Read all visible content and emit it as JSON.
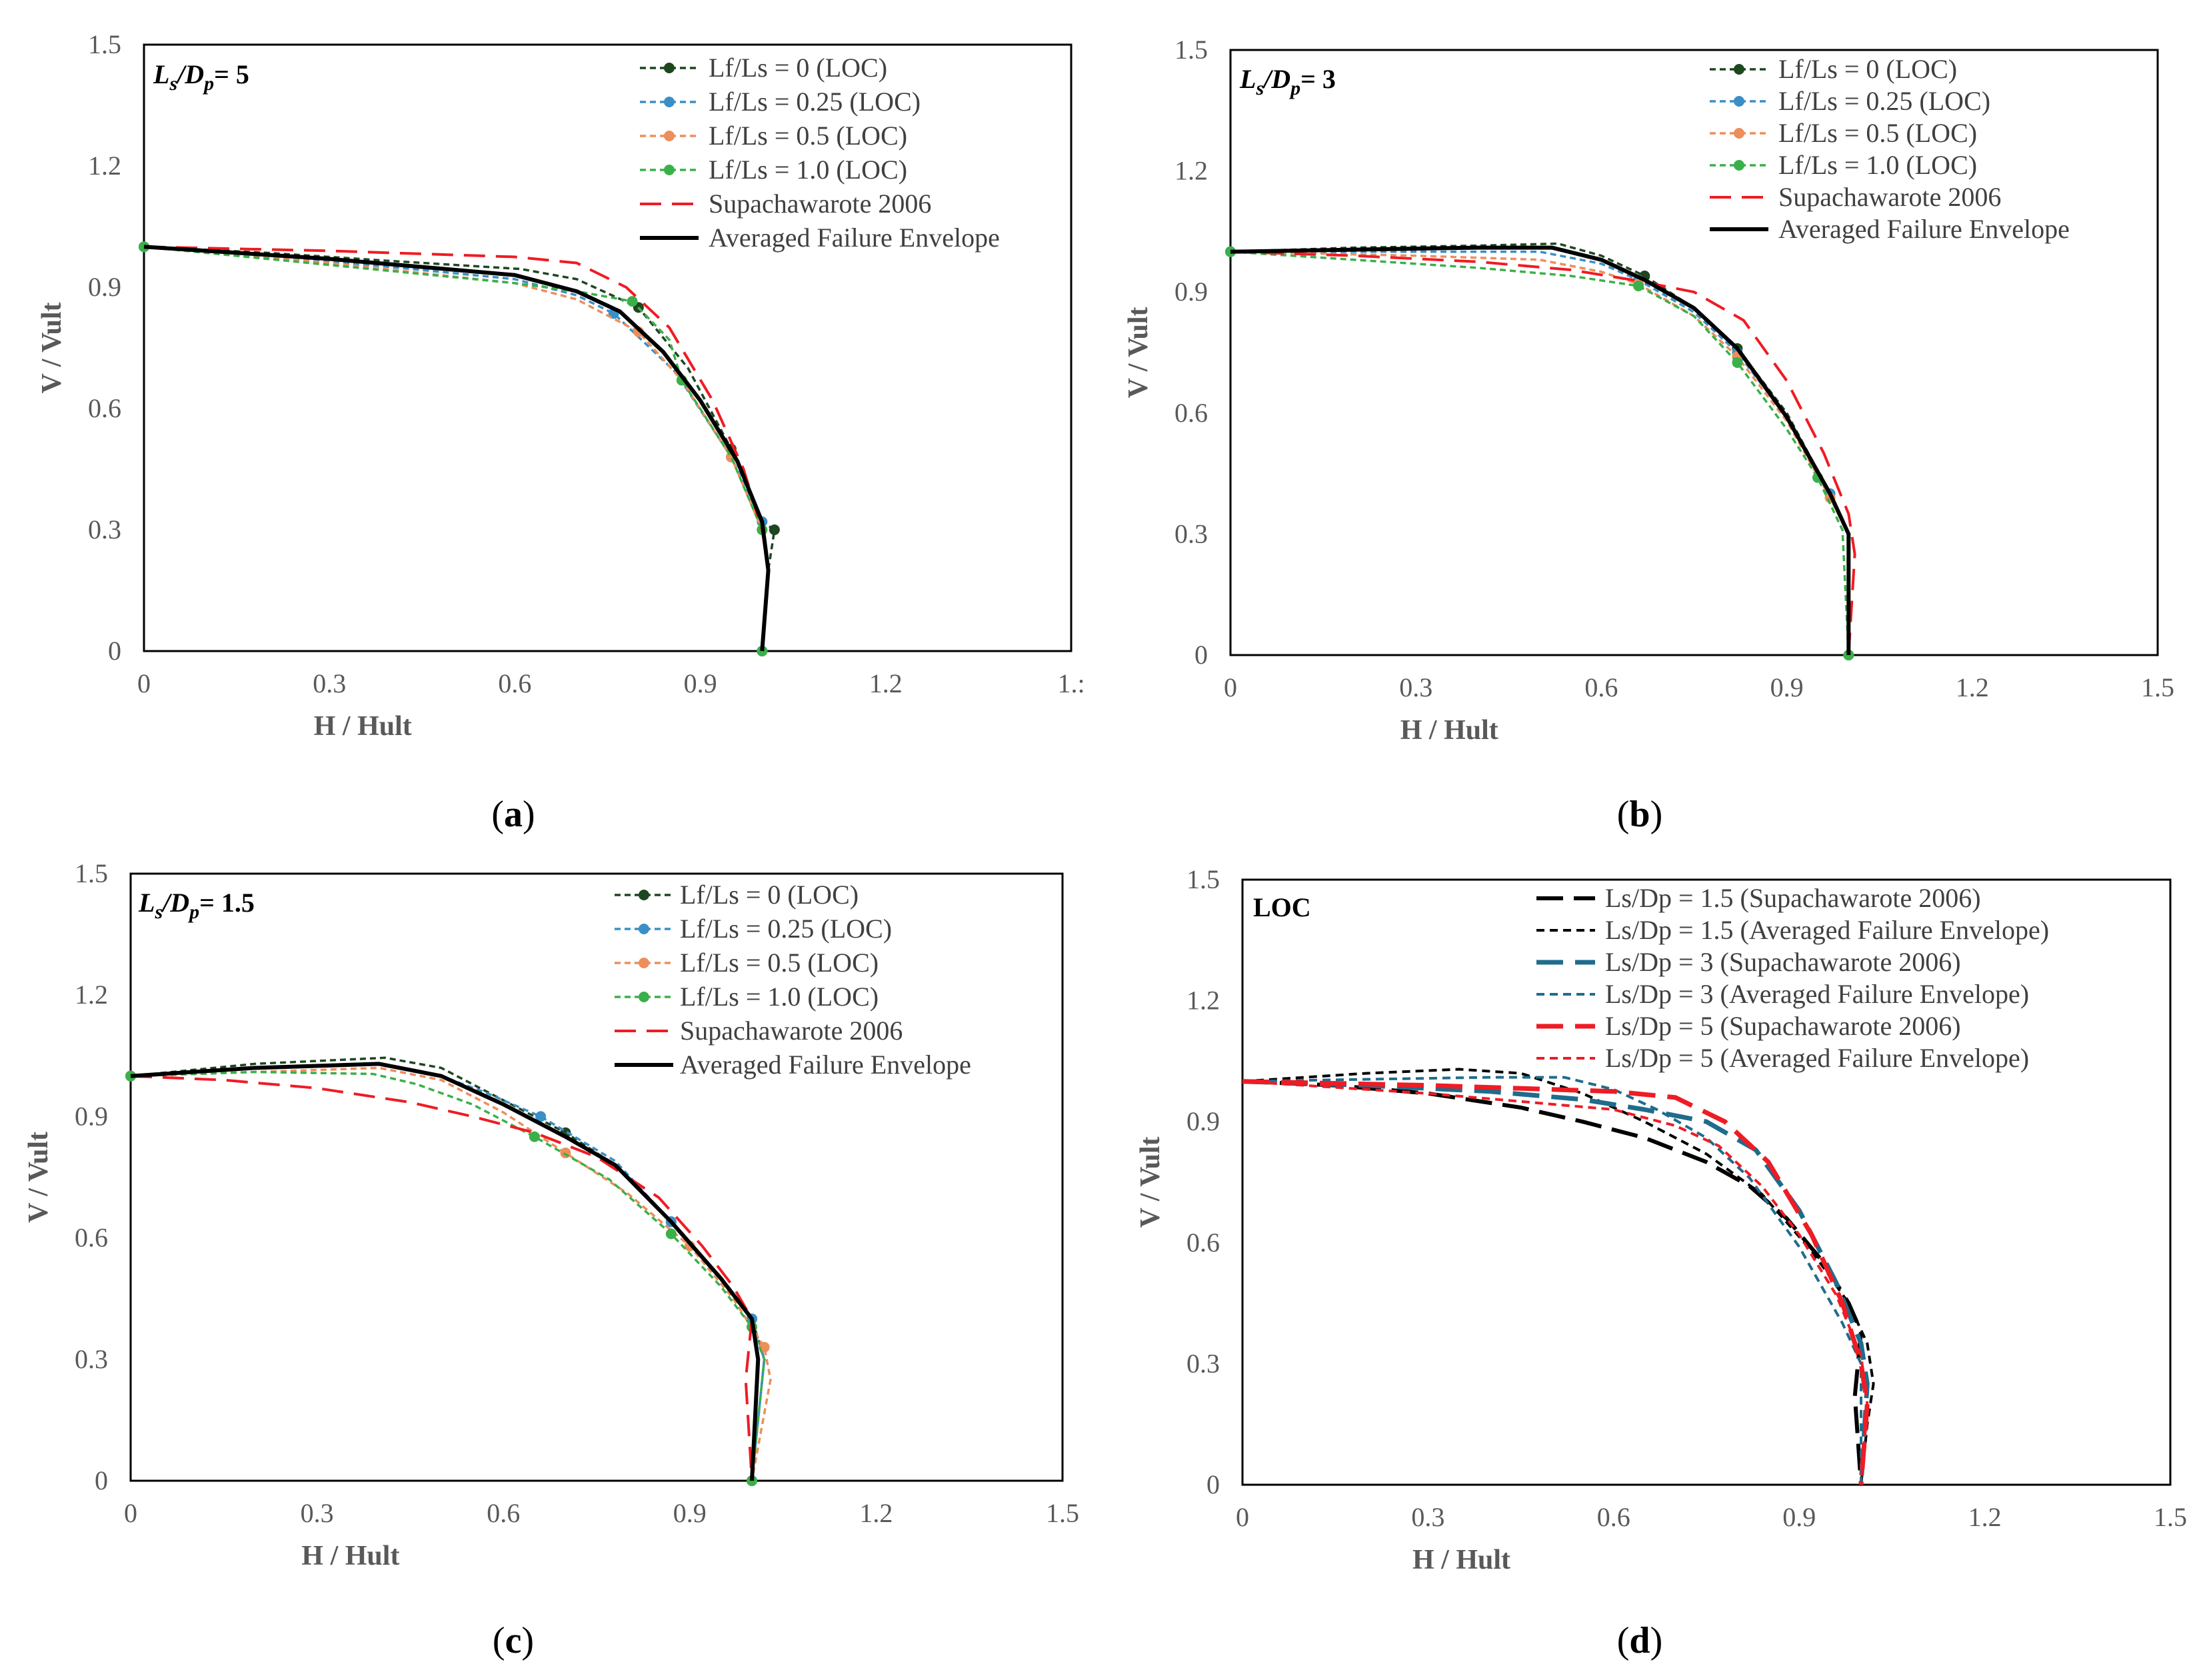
{
  "figure": {
    "panels": [
      {
        "id": "a",
        "caption": {
          "open": "(",
          "letter": "a",
          "close": ")"
        },
        "tag": {
          "main": "L",
          "sub1": "s",
          "slash": "/D",
          "sub2": "p",
          "rest": "= 5"
        },
        "xlabel": "H / Hult",
        "ylabel": "V / Vult",
        "xticks": [
          "0",
          "0.3",
          "0.6",
          "0.9",
          "1.2",
          "1.:"
        ],
        "yticks": [
          "0",
          "0.3",
          "0.6",
          "0.9",
          "1.2",
          "1.5"
        ]
      },
      {
        "id": "b",
        "caption": {
          "open": "(",
          "letter": "b",
          "close": ")"
        },
        "tag": {
          "main": "L",
          "sub1": "s",
          "slash": "/D",
          "sub2": "p",
          "rest": "= 3"
        },
        "xlabel": "H / Hult",
        "ylabel": "V / Vult",
        "xticks": [
          "0",
          "0.3",
          "0.6",
          "0.9",
          "1.2",
          "1.5"
        ],
        "yticks": [
          "0",
          "0.3",
          "0.6",
          "0.9",
          "1.2",
          "1.5"
        ]
      },
      {
        "id": "c",
        "caption": {
          "open": "(",
          "letter": "c",
          "close": ")"
        },
        "tag": {
          "main": "L",
          "sub1": "s",
          "slash": "/D",
          "sub2": "p",
          "rest": "= 1.5"
        },
        "xlabel": "H / Hult",
        "ylabel": "V / Vult",
        "xticks": [
          "0",
          "0.3",
          "0.6",
          "0.9",
          "1.2",
          "1.5"
        ],
        "yticks": [
          "0",
          "0.3",
          "0.6",
          "0.9",
          "1.2",
          "1.5"
        ]
      },
      {
        "id": "d",
        "caption": {
          "open": "(",
          "letter": "d",
          "close": ")"
        },
        "tag": {
          "plain": "LOC"
        },
        "xlabel": "H / Hult",
        "ylabel": "V / Vult",
        "xticks": [
          "0",
          "0.3",
          "0.6",
          "0.9",
          "1.2",
          "1.5"
        ],
        "yticks": [
          "0",
          "0.3",
          "0.6",
          "0.9",
          "1.2",
          "1.5"
        ]
      }
    ]
  },
  "colors": {
    "lf0": "#1e4620",
    "lf025": "#3a8fc7",
    "lf05": "#ee8e5a",
    "lf10": "#3ab04a",
    "supa": "#ee1c24",
    "avg": "#000000",
    "teal": "#1f6c8c",
    "axis": "#000000",
    "text": "#595959"
  },
  "chart_data": [
    {
      "type": "line",
      "panel": "a",
      "title": "Ls/Dp = 5",
      "xlabel": "H / Hult",
      "ylabel": "V / Vult",
      "xlim": [
        0,
        1.5
      ],
      "ylim": [
        0,
        1.5
      ],
      "series": [
        {
          "name": "Lf/Ls = 0 (LOC)",
          "style": "dotted-marker",
          "color": "lf0",
          "x": [
            0,
            0.2,
            0.4,
            0.61,
            0.7,
            0.8,
            0.88,
            0.95,
            1.0,
            1.02,
            1.01,
            1.0
          ],
          "y": [
            1.0,
            0.985,
            0.965,
            0.945,
            0.92,
            0.85,
            0.7,
            0.5,
            0.32,
            0.3,
            0.2,
            0
          ]
        },
        {
          "name": "Lf/Ls = 0.25 (LOC)",
          "style": "dotted-marker",
          "color": "lf025",
          "x": [
            0,
            0.3,
            0.6,
            0.7,
            0.76,
            0.86,
            0.95,
            1.0,
            1.01,
            1.0
          ],
          "y": [
            1.0,
            0.965,
            0.92,
            0.88,
            0.835,
            0.69,
            0.48,
            0.32,
            0.2,
            0
          ]
        },
        {
          "name": "Lf/Ls = 0.5 (LOC)",
          "style": "dotted-marker",
          "color": "lf05",
          "x": [
            0,
            0.3,
            0.6,
            0.7,
            0.8,
            0.87,
            0.95,
            1.0,
            1.01,
            1.0
          ],
          "y": [
            1.0,
            0.96,
            0.91,
            0.87,
            0.79,
            0.67,
            0.48,
            0.3,
            0.2,
            0
          ]
        },
        {
          "name": "Lf/Ls = 1.0 (LOC)",
          "style": "dotted-marker",
          "color": "lf10",
          "x": [
            0,
            0.3,
            0.6,
            0.7,
            0.79,
            0.85,
            0.87,
            0.95,
            1.0,
            1.01,
            1.0
          ],
          "y": [
            1.0,
            0.955,
            0.91,
            0.89,
            0.865,
            0.77,
            0.67,
            0.48,
            0.3,
            0.2,
            0
          ]
        },
        {
          "name": "Supachawarote 2006",
          "style": "dashed",
          "color": "supa",
          "x": [
            0,
            0.3,
            0.6,
            0.7,
            0.78,
            0.85,
            0.92,
            0.97,
            1.0,
            1.01,
            1.0
          ],
          "y": [
            1.0,
            0.99,
            0.975,
            0.96,
            0.9,
            0.8,
            0.62,
            0.45,
            0.3,
            0.2,
            0
          ]
        },
        {
          "name": "Averaged Failure Envelope",
          "style": "solid",
          "color": "avg",
          "x": [
            0,
            0.3,
            0.6,
            0.7,
            0.77,
            0.84,
            0.9,
            0.96,
            1.0,
            1.01,
            1.0
          ],
          "y": [
            1.0,
            0.97,
            0.93,
            0.89,
            0.84,
            0.74,
            0.62,
            0.47,
            0.32,
            0.2,
            0
          ]
        }
      ]
    },
    {
      "type": "line",
      "panel": "b",
      "title": "Ls/Dp = 3",
      "xlabel": "H / Hult",
      "ylabel": "V / Vult",
      "xlim": [
        0,
        1.5
      ],
      "ylim": [
        0,
        1.5
      ],
      "series": [
        {
          "name": "Lf/Ls = 0 (LOC)",
          "style": "dotted-marker",
          "color": "lf0",
          "x": [
            0,
            0.2,
            0.4,
            0.53,
            0.6,
            0.67,
            0.75,
            0.82,
            0.9,
            0.97,
            1.0,
            1.0
          ],
          "y": [
            1.0,
            1.01,
            1.015,
            1.02,
            0.99,
            0.94,
            0.86,
            0.76,
            0.6,
            0.4,
            0.3,
            0
          ]
        },
        {
          "name": "Lf/Ls = 0.25 (LOC)",
          "style": "dotted-marker",
          "color": "lf025",
          "x": [
            0,
            0.3,
            0.5,
            0.6,
            0.66,
            0.75,
            0.82,
            0.9,
            0.97,
            1.0,
            1.0
          ],
          "y": [
            1.0,
            1.0,
            1.0,
            0.97,
            0.93,
            0.85,
            0.75,
            0.59,
            0.4,
            0.3,
            0
          ]
        },
        {
          "name": "Lf/Ls = 0.5 (LOC)",
          "style": "dotted-marker",
          "color": "lf05",
          "x": [
            0,
            0.3,
            0.5,
            0.6,
            0.66,
            0.75,
            0.82,
            0.9,
            0.97,
            1.0,
            1.0
          ],
          "y": [
            1.0,
            0.99,
            0.98,
            0.95,
            0.92,
            0.84,
            0.74,
            0.58,
            0.39,
            0.3,
            0
          ]
        },
        {
          "name": "Lf/Ls = 1.0 (LOC)",
          "style": "dotted-marker",
          "color": "lf10",
          "x": [
            0,
            0.2,
            0.4,
            0.55,
            0.66,
            0.75,
            0.82,
            0.9,
            0.95,
            0.99,
            1.0
          ],
          "y": [
            1.0,
            0.98,
            0.96,
            0.94,
            0.915,
            0.84,
            0.725,
            0.56,
            0.44,
            0.31,
            0
          ]
        },
        {
          "name": "Supachawarote 2006",
          "style": "dashed",
          "color": "supa",
          "x": [
            0,
            0.2,
            0.4,
            0.55,
            0.65,
            0.75,
            0.83,
            0.9,
            0.96,
            1.0,
            1.01,
            1.0
          ],
          "y": [
            1.0,
            0.99,
            0.975,
            0.955,
            0.93,
            0.9,
            0.83,
            0.68,
            0.5,
            0.35,
            0.25,
            0
          ]
        },
        {
          "name": "Averaged Failure Envelope",
          "style": "solid",
          "color": "avg",
          "x": [
            0,
            0.2,
            0.4,
            0.52,
            0.6,
            0.67,
            0.75,
            0.82,
            0.9,
            0.97,
            1.0,
            1.0
          ],
          "y": [
            1.0,
            1.005,
            1.01,
            1.01,
            0.98,
            0.93,
            0.86,
            0.76,
            0.59,
            0.4,
            0.3,
            0
          ]
        }
      ]
    },
    {
      "type": "line",
      "panel": "c",
      "title": "Ls/Dp = 1.5",
      "xlabel": "H / Hult",
      "ylabel": "V / Vult",
      "xlim": [
        0,
        1.5
      ],
      "ylim": [
        0,
        1.5
      ],
      "series": [
        {
          "name": "Lf/Ls = 0 (LOC)",
          "style": "dotted-marker",
          "color": "lf0",
          "x": [
            0,
            0.2,
            0.41,
            0.5,
            0.6,
            0.7,
            0.78,
            0.87,
            0.95,
            1.0,
            1.02,
            1.0
          ],
          "y": [
            1.0,
            1.03,
            1.045,
            1.02,
            0.94,
            0.86,
            0.78,
            0.64,
            0.5,
            0.4,
            0.3,
            0
          ]
        },
        {
          "name": "Lf/Ls = 0.25 (LOC)",
          "style": "dotted-marker",
          "color": "lf025",
          "x": [
            0,
            0.2,
            0.4,
            0.5,
            0.57,
            0.66,
            0.78,
            0.87,
            0.95,
            1.0,
            1.02,
            1.0
          ],
          "y": [
            1.0,
            1.02,
            1.03,
            1.0,
            0.96,
            0.9,
            0.79,
            0.64,
            0.5,
            0.4,
            0.3,
            0
          ]
        },
        {
          "name": "Lf/Ls = 0.5 (LOC)",
          "style": "dotted-marker",
          "color": "lf05",
          "x": [
            0,
            0.2,
            0.4,
            0.5,
            0.6,
            0.7,
            0.8,
            0.9,
            0.97,
            1.02,
            1.03,
            1.0
          ],
          "y": [
            1.0,
            1.01,
            1.02,
            0.99,
            0.91,
            0.81,
            0.71,
            0.58,
            0.45,
            0.33,
            0.25,
            0
          ]
        },
        {
          "name": "Lf/Ls = 1.0 (LOC)",
          "style": "dotted-marker",
          "color": "lf10",
          "x": [
            0,
            0.2,
            0.39,
            0.46,
            0.55,
            0.65,
            0.77,
            0.87,
            0.95,
            1.0,
            1.02,
            1.0
          ],
          "y": [
            1.0,
            1.01,
            1.005,
            0.98,
            0.93,
            0.85,
            0.745,
            0.61,
            0.48,
            0.38,
            0.3,
            0
          ]
        },
        {
          "name": "Supachawarote 2006",
          "style": "dashed",
          "color": "supa",
          "x": [
            0,
            0.15,
            0.3,
            0.45,
            0.55,
            0.65,
            0.75,
            0.85,
            0.92,
            0.97,
            1.0,
            0.99,
            1.0
          ],
          "y": [
            1.0,
            0.99,
            0.97,
            0.935,
            0.9,
            0.86,
            0.8,
            0.7,
            0.58,
            0.48,
            0.4,
            0.25,
            0
          ]
        },
        {
          "name": "Averaged Failure Envelope",
          "style": "solid",
          "color": "avg",
          "x": [
            0,
            0.2,
            0.4,
            0.5,
            0.6,
            0.7,
            0.78,
            0.87,
            0.95,
            1.0,
            1.01,
            1.0
          ],
          "y": [
            1.0,
            1.02,
            1.03,
            1.0,
            0.93,
            0.85,
            0.78,
            0.64,
            0.5,
            0.4,
            0.3,
            0
          ]
        }
      ]
    },
    {
      "type": "line",
      "panel": "d",
      "title": "LOC",
      "xlabel": "H / Hult",
      "ylabel": "V / Vult",
      "xlim": [
        0,
        1.5
      ],
      "ylim": [
        0,
        1.5
      ],
      "series": [
        {
          "name": "Ls/Dp = 1.5 (Supachawarote 2006)",
          "style": "dashdot-long",
          "color": "avg",
          "x": [
            0,
            0.15,
            0.3,
            0.45,
            0.55,
            0.65,
            0.75,
            0.82,
            0.88,
            0.94,
            0.98,
            1.0,
            0.99,
            1.0
          ],
          "y": [
            1.0,
            0.99,
            0.97,
            0.935,
            0.9,
            0.86,
            0.8,
            0.74,
            0.66,
            0.55,
            0.45,
            0.38,
            0.22,
            0
          ]
        },
        {
          "name": "Ls/Dp = 1.5 (Averaged Failure Envelope)",
          "style": "short-dash",
          "color": "avg",
          "x": [
            0,
            0.2,
            0.35,
            0.45,
            0.55,
            0.65,
            0.75,
            0.84,
            0.92,
            0.98,
            1.01,
            1.02,
            1.01,
            1.0
          ],
          "y": [
            1.0,
            1.02,
            1.03,
            1.02,
            0.97,
            0.9,
            0.82,
            0.72,
            0.58,
            0.45,
            0.35,
            0.25,
            0.15,
            0
          ]
        },
        {
          "name": "Ls/Dp = 3 (Supachawarote 2006)",
          "style": "long-dash",
          "color": "teal",
          "x": [
            0,
            0.2,
            0.4,
            0.55,
            0.65,
            0.75,
            0.83,
            0.9,
            0.96,
            1.0,
            1.01,
            1.0
          ],
          "y": [
            1.0,
            0.99,
            0.975,
            0.955,
            0.93,
            0.9,
            0.83,
            0.68,
            0.5,
            0.35,
            0.25,
            0
          ]
        },
        {
          "name": "Ls/Dp = 3 (Averaged Failure Envelope)",
          "style": "short-dash",
          "color": "teal",
          "x": [
            0,
            0.2,
            0.4,
            0.52,
            0.6,
            0.67,
            0.75,
            0.82,
            0.9,
            0.97,
            1.0,
            1.0
          ],
          "y": [
            1.0,
            1.005,
            1.01,
            1.01,
            0.98,
            0.93,
            0.86,
            0.76,
            0.59,
            0.4,
            0.3,
            0
          ]
        },
        {
          "name": "Ls/Dp = 5 (Supachawarote 2006)",
          "style": "long-dash",
          "color": "supa",
          "x": [
            0,
            0.3,
            0.6,
            0.7,
            0.78,
            0.85,
            0.92,
            0.97,
            1.0,
            1.01,
            1.0
          ],
          "y": [
            1.0,
            0.99,
            0.975,
            0.96,
            0.9,
            0.8,
            0.62,
            0.45,
            0.3,
            0.2,
            0
          ]
        },
        {
          "name": "Ls/Dp = 5 (Averaged Failure Envelope)",
          "style": "short-dash",
          "color": "supa",
          "x": [
            0,
            0.3,
            0.6,
            0.7,
            0.77,
            0.84,
            0.9,
            0.96,
            1.0,
            1.01,
            1.0
          ],
          "y": [
            1.0,
            0.97,
            0.93,
            0.89,
            0.84,
            0.74,
            0.62,
            0.47,
            0.32,
            0.2,
            0
          ]
        }
      ]
    }
  ]
}
